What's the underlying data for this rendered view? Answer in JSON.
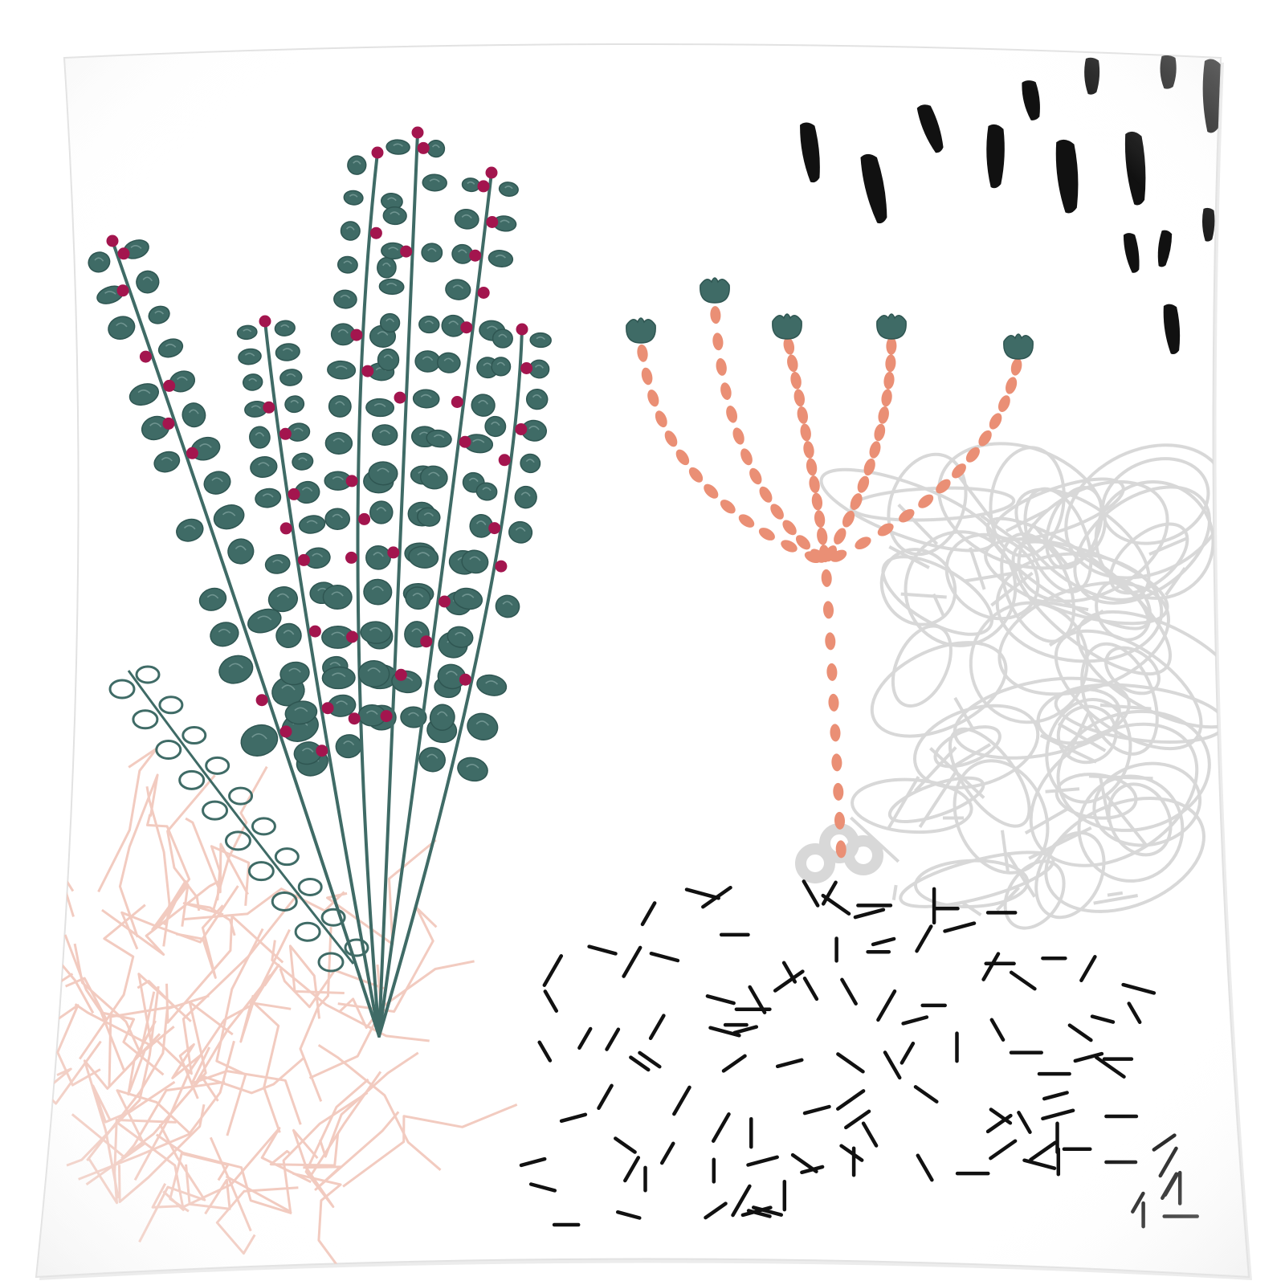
{
  "image": {
    "subject": "pillow",
    "colors": {
      "background": "#ffffff",
      "pillow_fabric": "#fdfdfd",
      "pillow_shadow": "#e9e9e9",
      "leaf_green": "#3f6b66",
      "berry_magenta": "#a3154e",
      "coral": "#ea8f75",
      "pink_scribble": "#f2c9bd",
      "gray_scribble": "#d6d6d6",
      "black_marks": "#111111"
    },
    "icons": [
      "pillow",
      "eucalyptus-branch-icon",
      "coral-stem-icon",
      "pink-scribble",
      "gray-scribble",
      "black-dash-pattern",
      "black-brush-strokes"
    ]
  }
}
